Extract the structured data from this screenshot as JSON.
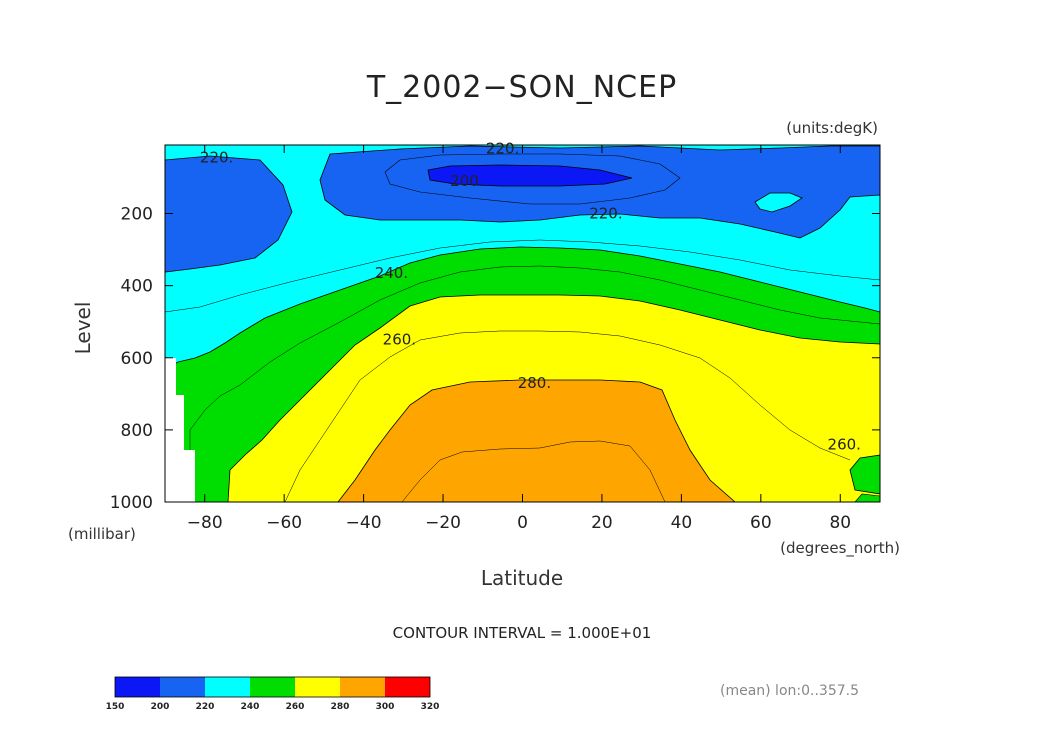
{
  "chart_data": {
    "type": "heatmap",
    "title": "T_2002−SON_NCEP",
    "units_note": "(units:degK)",
    "xlabel": "Latitude",
    "ylabel": "Level",
    "x_unit": "(degrees_north)",
    "y_unit": "(millibar)",
    "xlim": [
      -90,
      90
    ],
    "ylim": [
      1000,
      10
    ],
    "x_ticks": [
      -80,
      -60,
      -40,
      -20,
      0,
      20,
      40,
      60,
      80
    ],
    "x_tick_labels": [
      "−80",
      "−60",
      "−40",
      "−20",
      "0",
      "20",
      "40",
      "60",
      "80"
    ],
    "y_ticks": [
      200,
      400,
      600,
      800,
      1000
    ],
    "contour_interval": "CONTOUR INTERVAL = 1.000E+01",
    "contour_labels": [
      {
        "text": "220.",
        "lat": -77,
        "lev": 45
      },
      {
        "text": "220.",
        "lat": -5,
        "lev": 20
      },
      {
        "text": "200.",
        "lat": -14,
        "lev": 110
      },
      {
        "text": "220.",
        "lat": 21,
        "lev": 200
      },
      {
        "text": "240.",
        "lat": -33,
        "lev": 365
      },
      {
        "text": "260.",
        "lat": -31,
        "lev": 550
      },
      {
        "text": "280.",
        "lat": 3,
        "lev": 670
      },
      {
        "text": "260.",
        "lat": 81,
        "lev": 840
      }
    ],
    "colorbar": {
      "levels": [
        150,
        200,
        220,
        240,
        260,
        280,
        300,
        320
      ],
      "colors": [
        "#0b18f5",
        "#1764f3",
        "#00ffff",
        "#00dd00",
        "#ffff00",
        "#ffa500",
        "#ff0000"
      ]
    },
    "footnote": "(mean) lon:0..357.5"
  }
}
